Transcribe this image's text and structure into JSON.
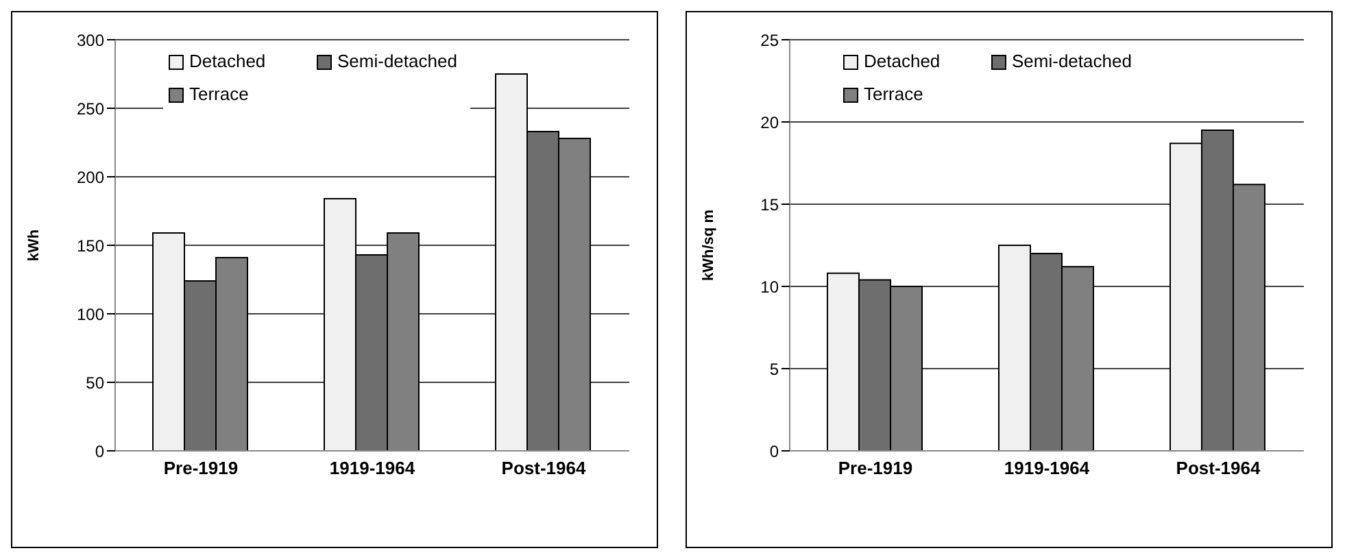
{
  "chart_data": [
    {
      "type": "bar",
      "ylabel": "kWh",
      "categories": [
        "Pre-1919",
        "1919-1964",
        "Post-1964"
      ],
      "series": [
        {
          "name": "Detached",
          "color": "#f0f0f0",
          "values": [
            159,
            184,
            275
          ]
        },
        {
          "name": "Semi-detached",
          "color": "#6e6e6e",
          "values": [
            124,
            143,
            233
          ]
        },
        {
          "name": "Terrace",
          "color": "#808080",
          "values": [
            141,
            159,
            228
          ]
        }
      ],
      "ylim": [
        0,
        300
      ],
      "yticks": [
        0,
        50,
        100,
        150,
        200,
        250,
        300
      ],
      "grid": "y",
      "legend": "top left"
    },
    {
      "type": "bar",
      "ylabel": "kWh/sq m",
      "categories": [
        "Pre-1919",
        "1919-1964",
        "Post-1964"
      ],
      "series": [
        {
          "name": "Detached",
          "color": "#f0f0f0",
          "values": [
            10.8,
            12.5,
            18.7
          ]
        },
        {
          "name": "Semi-detached",
          "color": "#6e6e6e",
          "values": [
            10.4,
            12.0,
            19.5
          ]
        },
        {
          "name": "Terrace",
          "color": "#808080",
          "values": [
            10.0,
            11.2,
            16.2
          ]
        }
      ],
      "ylim": [
        0,
        25
      ],
      "yticks": [
        0,
        5,
        10,
        15,
        20,
        25
      ],
      "grid": "y",
      "legend": "top left"
    }
  ]
}
